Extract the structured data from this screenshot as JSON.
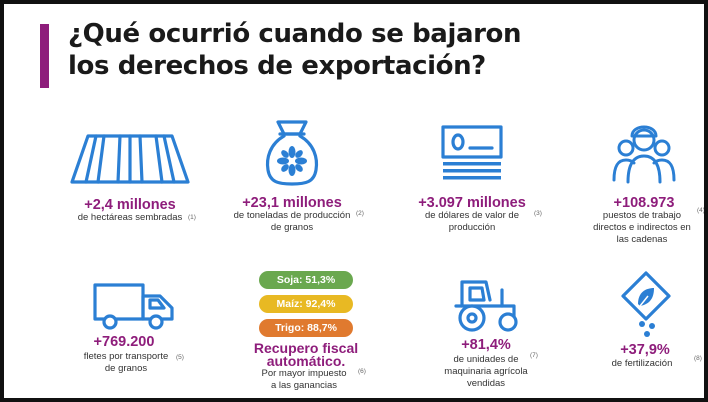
{
  "title": {
    "line1": "¿Qué ocurrió cuando se bajaron",
    "line2": "los derechos de exportación?"
  },
  "colors": {
    "accent": "#8e1d7b",
    "icon_blue": "#2b7fd4",
    "soja": "#6aa84f",
    "maiz": "#e8b923",
    "trigo": "#e07a2f"
  },
  "stats": {
    "hectareas": {
      "value": "+2,4 millones",
      "desc": "de hectáreas sembradas",
      "note": "(1)"
    },
    "toneladas": {
      "value": "+23,1 millones",
      "desc1": "de toneladas de producción",
      "desc2": "de granos",
      "note": "(2)"
    },
    "dolares": {
      "value": "+3.097 millones",
      "desc1": "de dólares de valor de",
      "desc2": "producción",
      "note": "(3)"
    },
    "puestos": {
      "value": "+108.973",
      "desc1": "puestos de trabajo",
      "desc2": "directos e indirectos en",
      "desc3": "las cadenas",
      "note": "(4)"
    },
    "fletes": {
      "value": "+769.200",
      "desc1": "fletes por transporte",
      "desc2": "de granos",
      "note": "(5)"
    },
    "recupero": {
      "soja": "Soja: 51,3%",
      "maiz": "Maíz: 92,4%",
      "trigo": "Trigo: 88,7%",
      "title1": "Recupero fiscal",
      "title2": "automático.",
      "desc1": "Por mayor impuesto",
      "desc2": "a las ganancias",
      "note": "(6)"
    },
    "maquinaria": {
      "value": "+81,4%",
      "desc1": "de unidades de",
      "desc2": "maquinaria agrícola",
      "desc3": "vendidas",
      "note": "(7)"
    },
    "fertilizacion": {
      "value": "+37,9%",
      "desc": "de fertilización",
      "note": "(8)"
    }
  },
  "icons": {
    "hectareas": "field-rows-icon",
    "toneladas": "grain-sack-icon",
    "dolares": "banknotes-icon",
    "puestos": "workers-group-icon",
    "fletes": "truck-icon",
    "maquinaria": "tractor-icon",
    "fertilizacion": "fertilizer-icon"
  }
}
